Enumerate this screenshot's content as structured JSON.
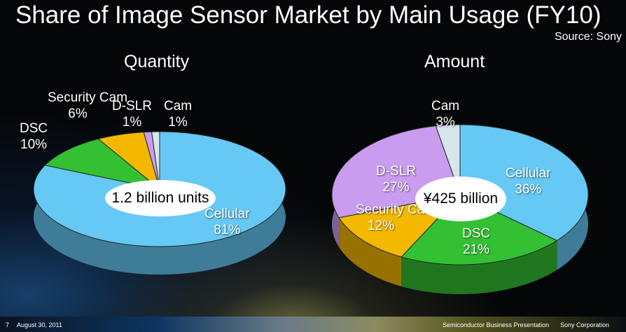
{
  "title": "Share of Image Sensor Market by Main Usage (FY10)",
  "source": "Source: Sony",
  "chart_data": [
    {
      "type": "pie",
      "title": "Quantity",
      "center_label": "1.2 billion units",
      "categories": [
        "Cellular",
        "DSC",
        "Security Cam",
        "D-SLR",
        "Cam"
      ],
      "values": [
        81,
        10,
        6,
        1,
        1
      ],
      "labels": [
        "81%",
        "10%",
        "6%",
        "1%",
        "1%"
      ],
      "colors": [
        "#66c8f5",
        "#33c033",
        "#f5b800",
        "#c99cf0",
        "#d6e6ea"
      ]
    },
    {
      "type": "pie",
      "title": "Amount",
      "center_label": "¥425 billion",
      "categories": [
        "Cellular",
        "DSC",
        "Security Cam",
        "D-SLR",
        "Cam"
      ],
      "values": [
        36,
        21,
        12,
        27,
        3
      ],
      "labels": [
        "36%",
        "21%",
        "12%",
        "27%",
        "3%"
      ],
      "colors": [
        "#66c8f5",
        "#33c033",
        "#f5b800",
        "#c99cf0",
        "#d6e6ea"
      ]
    }
  ],
  "footer": {
    "page": "7",
    "date": "August 30, 2011",
    "event": "Semiconductor Business Presentation",
    "company": "Sony Corporation"
  }
}
